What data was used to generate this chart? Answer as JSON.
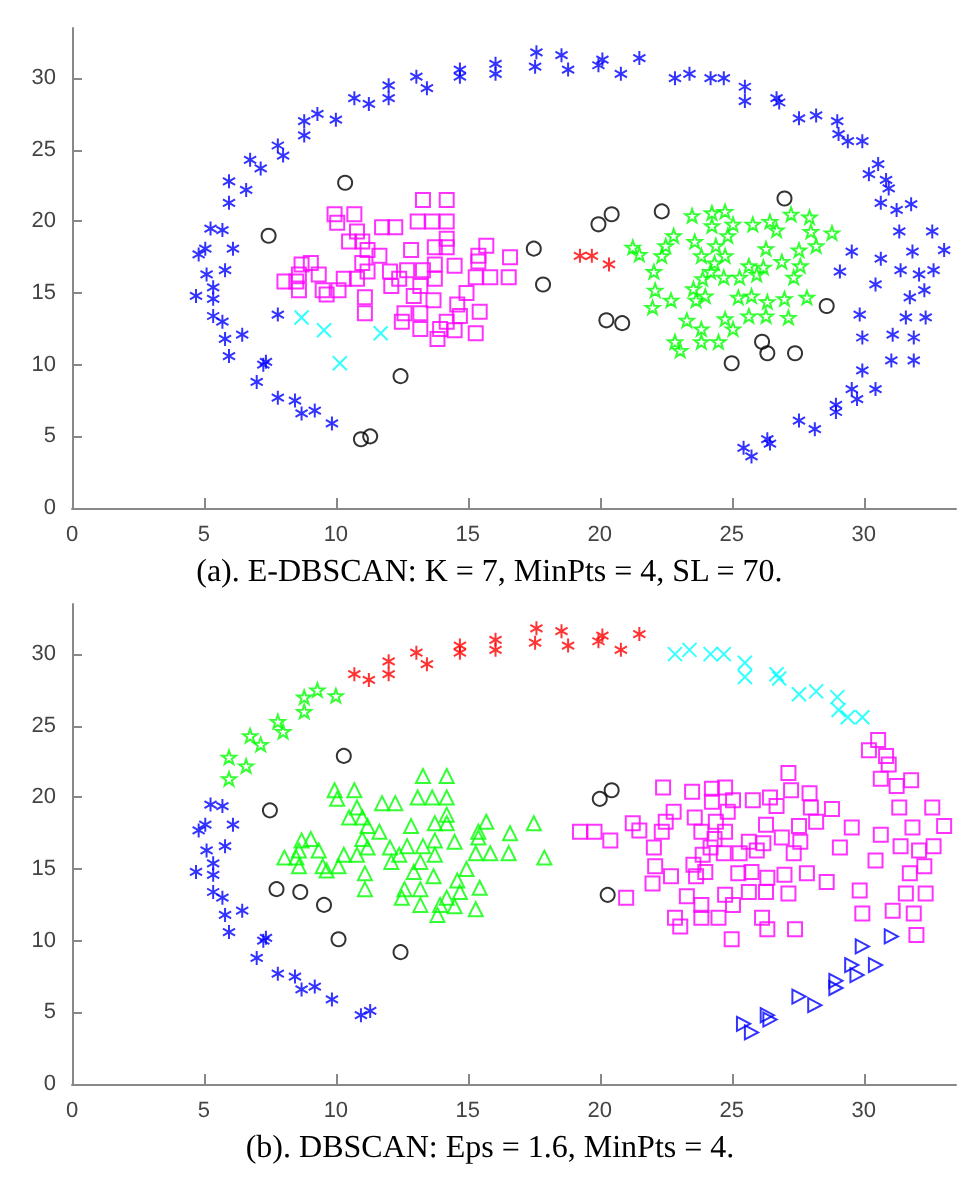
{
  "chart_data": [
    {
      "type": "scatter",
      "annotations": [
        "(a). E-DBSCAN: K = 7, MinPts = 4, SL = 70."
      ],
      "xlim": [
        0,
        33.5
      ],
      "ylim": [
        0,
        33.5
      ],
      "xticks": [
        0,
        5,
        10,
        15,
        20,
        25,
        30
      ],
      "yticks": [
        0,
        5,
        10,
        15,
        20,
        25,
        30
      ],
      "series": [
        {
          "color": "#0000ff",
          "marker": "cross",
          "x": [
            4.7,
            4.8,
            5.05,
            5.1,
            5.25,
            5.7,
            5.35,
            5.35,
            5.35,
            5.7,
            5.8,
            5.8,
            5.95,
            6.1,
            5.95,
            5.95,
            6.6,
            6.45,
            6.75,
            7.15,
            7.25,
            7.35,
            7.0,
            7.8,
            8.0,
            7.8,
            7.8,
            8.45,
            8.7,
            8.8,
            8.8,
            9.3,
            9.2,
            10.0,
            9.85,
            10.7,
            11.25,
            12.0,
            12.0,
            13.05,
            13.45,
            14.7,
            14.7,
            16.05,
            16.05,
            17.55,
            17.6,
            18.55,
            18.8,
            19.95,
            20.1,
            20.8,
            21.5,
            22.85,
            23.4,
            24.2,
            24.7,
            25.5,
            25.5,
            26.7,
            26.8,
            27.55,
            28.2,
            29.0,
            29.05,
            29.4,
            29.95,
            30.2,
            30.55,
            30.85,
            30.95,
            30.65,
            31.25,
            31.8,
            31.35,
            32.6,
            31.85,
            33.05,
            30.65,
            29.55,
            29.1,
            31.4,
            32.1,
            32.65,
            30.45,
            31.75,
            32.3,
            29.85,
            31.6,
            32.35,
            29.95,
            31.1,
            31.9,
            29.95,
            31.05,
            31.9,
            29.55,
            30.45,
            29.75,
            28.95,
            28.95,
            27.55,
            28.15,
            26.35,
            26.45,
            25.45,
            25.75
          ],
          "values": [
            14.8,
            17.7,
            18.1,
            16.3,
            19.5,
            19.4,
            15.4,
            14.6,
            13.4,
            13.0,
            16.6,
            11.8,
            10.6,
            18.1,
            21.3,
            22.8,
            22.2,
            12.1,
            24.3,
            23.7,
            10.0,
            10.2,
            8.8,
            25.3,
            24.6,
            13.5,
            7.7,
            7.5,
            6.6,
            26.0,
            27.0,
            27.5,
            6.8,
            27.1,
            5.9,
            28.6,
            28.2,
            28.6,
            29.5,
            30.1,
            29.3,
            30.6,
            30.1,
            31.0,
            30.3,
            30.8,
            31.8,
            31.6,
            30.6,
            30.9,
            31.3,
            30.3,
            31.4,
            30.0,
            30.3,
            30.0,
            30.0,
            29.4,
            28.4,
            28.6,
            28.3,
            27.2,
            27.4,
            27.0,
            26.1,
            25.6,
            25.6,
            23.3,
            24.0,
            22.9,
            22.3,
            21.3,
            20.8,
            21.2,
            19.3,
            19.3,
            17.9,
            18.0,
            17.4,
            17.9,
            16.5,
            16.6,
            16.3,
            16.6,
            15.6,
            14.7,
            15.2,
            13.5,
            13.3,
            13.3,
            11.9,
            12.1,
            11.9,
            9.6,
            10.3,
            10.3,
            8.3,
            8.3,
            7.6,
            7.2,
            6.7,
            6.1,
            5.5,
            4.8,
            4.5,
            4.2,
            3.6
          ]
        },
        {
          "color": "#ff00ff",
          "marker": "square",
          "x": [
            13.3,
            14.2,
            9.95,
            10.7,
            10.05,
            13.1,
            13.65,
            14.2,
            11.75,
            12.25,
            10.8,
            14.2,
            11.0,
            10.5,
            15.7,
            12.85,
            13.75,
            14.2,
            11.2,
            15.4,
            11.65,
            16.6,
            8.7,
            9.05,
            11.0,
            13.75,
            14.5,
            15.4,
            9.35,
            8.6,
            11.2,
            12.05,
            12.7,
            13.3,
            8.05,
            8.5,
            10.3,
            10.8,
            12.4,
            13.75,
            15.3,
            15.85,
            16.55,
            8.6,
            9.5,
            10.1,
            12.1,
            13.2,
            14.95,
            9.65,
            11.1,
            12.95,
            13.7,
            14.6,
            11.1,
            12.6,
            13.2,
            15.45,
            12.5,
            14.2,
            14.7,
            13.2,
            13.95,
            14.5,
            15.3,
            13.85
          ],
          "values": [
            21.5,
            21.5,
            20.5,
            20.5,
            19.9,
            20.0,
            20.0,
            20.0,
            19.6,
            19.6,
            19.3,
            18.8,
            18.6,
            18.6,
            18.3,
            18.0,
            18.2,
            18.2,
            18.0,
            17.6,
            17.6,
            17.5,
            17.0,
            17.1,
            17.1,
            17.0,
            16.9,
            17.2,
            16.3,
            16.3,
            16.5,
            16.5,
            16.6,
            16.6,
            15.8,
            15.8,
            16.0,
            16.0,
            16.0,
            16.0,
            16.1,
            16.1,
            16.1,
            15.2,
            15.2,
            15.2,
            15.5,
            15.5,
            15.0,
            14.9,
            14.7,
            14.8,
            14.5,
            14.2,
            13.6,
            13.6,
            13.6,
            13.7,
            13.0,
            13.0,
            13.4,
            12.5,
            12.5,
            12.4,
            12.2,
            11.8
          ]
        },
        {
          "color": "#00ff00",
          "marker": "star",
          "x": [
            23.5,
            24.25,
            24.75,
            25.05,
            24.25,
            25.8,
            26.45,
            27.25,
            27.95,
            26.7,
            28.0,
            28.8,
            22.8,
            23.6,
            24.85,
            22.5,
            24.4,
            26.3,
            27.55,
            28.2,
            21.25,
            21.5,
            22.35,
            23.85,
            24.75,
            24.35,
            25.65,
            26.9,
            27.6,
            22.05,
            24.2,
            26.2,
            24.7,
            25.3,
            25.95,
            27.35,
            23.9,
            23.55,
            22.1,
            24.0,
            25.25,
            25.75,
            27.0,
            27.85,
            22.7,
            23.65,
            22.0,
            26.35,
            23.3,
            24.75,
            25.65,
            26.3,
            27.15,
            23.85,
            25.05,
            22.85,
            23.85,
            24.5,
            23.05
          ],
          "values": [
            20.4,
            20.6,
            20.7,
            19.8,
            19.7,
            19.8,
            20.0,
            20.5,
            20.3,
            19.4,
            19.3,
            19.2,
            19.0,
            18.6,
            19.0,
            18.3,
            18.3,
            18.1,
            18.0,
            18.3,
            18.2,
            17.7,
            17.6,
            17.6,
            17.6,
            17.1,
            16.9,
            17.2,
            16.9,
            16.5,
            16.5,
            16.8,
            16.1,
            16.1,
            16.3,
            16.1,
            16.0,
            15.3,
            15.2,
            14.8,
            14.7,
            14.8,
            14.6,
            14.7,
            14.5,
            14.5,
            14.0,
            14.4,
            13.1,
            13.2,
            13.4,
            13.4,
            13.3,
            12.5,
            12.5,
            11.6,
            11.6,
            11.6,
            11.0
          ]
        },
        {
          "color": "#000000",
          "marker": "circle",
          "x": [
            10.35,
            7.45,
            17.5,
            17.85,
            19.95,
            20.45,
            22.35,
            27.0,
            20.25,
            20.85,
            28.6,
            26.15,
            26.35,
            27.4,
            25.0,
            12.45,
            10.95,
            11.3
          ],
          "values": [
            22.7,
            19.0,
            18.1,
            15.6,
            19.8,
            20.5,
            20.7,
            21.6,
            13.1,
            12.9,
            14.1,
            11.6,
            10.8,
            10.8,
            10.1,
            9.2,
            4.8,
            5.0
          ]
        },
        {
          "color": "#ff0000",
          "marker": "cross",
          "x": [
            19.25,
            19.7,
            20.35
          ],
          "values": [
            17.6,
            17.6,
            17.0
          ]
        },
        {
          "color": "#00ffff",
          "marker": "x",
          "x": [
            8.7,
            9.55,
            11.7,
            10.15
          ],
          "values": [
            13.3,
            12.4,
            12.2,
            10.1
          ]
        }
      ]
    },
    {
      "type": "scatter",
      "annotations": [
        "(b). DBSCAN: Eps = 1.6, MinPts = 4."
      ],
      "xlim": [
        0,
        33.5
      ],
      "ylim": [
        0,
        33.5
      ],
      "xticks": [
        0,
        5,
        10,
        15,
        20,
        25,
        30
      ],
      "yticks": [
        0,
        5,
        10,
        15,
        20,
        25,
        30
      ],
      "series": [
        {
          "color": "#0000ff",
          "marker": "cross",
          "x": [
            4.7,
            4.8,
            5.05,
            5.1,
            5.25,
            5.7,
            5.35,
            5.35,
            5.35,
            5.7,
            5.8,
            5.8,
            5.95,
            6.1,
            6.45,
            7.25,
            7.35,
            7.0,
            7.8,
            8.45,
            8.7,
            9.2,
            9.85,
            10.95,
            11.3
          ],
          "values": [
            14.8,
            17.7,
            18.1,
            16.3,
            19.5,
            19.4,
            15.4,
            14.6,
            13.4,
            13.0,
            16.6,
            11.8,
            10.6,
            18.1,
            12.1,
            10.0,
            10.2,
            8.8,
            7.7,
            7.5,
            6.6,
            6.8,
            5.9,
            4.8,
            5.1
          ]
        },
        {
          "color": "#00ff00",
          "marker": "star",
          "x": [
            5.95,
            5.95,
            6.6,
            6.75,
            7.15,
            7.8,
            8.0,
            8.8,
            8.8,
            9.3,
            10.0
          ],
          "values": [
            21.3,
            22.8,
            22.2,
            24.3,
            23.7,
            25.3,
            24.6,
            26.0,
            27.0,
            27.5,
            27.1
          ]
        },
        {
          "color": "#ff0000",
          "marker": "cross",
          "x": [
            10.7,
            11.25,
            12.0,
            12.0,
            13.05,
            13.45,
            14.7,
            14.7,
            16.05,
            16.05,
            17.55,
            17.6,
            18.55,
            18.8,
            19.95,
            20.1,
            20.8,
            21.5
          ],
          "values": [
            28.6,
            28.2,
            28.6,
            29.5,
            30.1,
            29.3,
            30.6,
            30.1,
            31.0,
            30.3,
            30.8,
            31.8,
            31.6,
            30.6,
            30.9,
            31.3,
            30.3,
            31.4
          ]
        },
        {
          "color": "#00ffff",
          "marker": "x",
          "x": [
            22.85,
            23.4,
            24.2,
            24.7,
            25.5,
            25.5,
            26.7,
            26.8,
            27.55,
            28.2,
            29.0,
            29.05,
            29.4,
            29.95
          ],
          "values": [
            30.0,
            30.3,
            30.0,
            30.0,
            29.4,
            28.4,
            28.6,
            28.3,
            27.2,
            27.4,
            27.0,
            26.1,
            25.6,
            25.6
          ]
        },
        {
          "color": "#0000ff",
          "marker": "triangle-right",
          "x": [
            29.95,
            31.05,
            29.55,
            30.45,
            29.75,
            28.95,
            28.95,
            27.55,
            28.15,
            26.35,
            26.45,
            25.45,
            25.75
          ],
          "values": [
            9.6,
            10.3,
            8.3,
            8.3,
            7.6,
            7.2,
            6.7,
            6.1,
            5.5,
            4.8,
            4.5,
            4.2,
            3.6
          ]
        },
        {
          "color": "#00ff00",
          "marker": "triangle",
          "x": [
            13.3,
            14.2,
            9.95,
            10.7,
            10.05,
            13.1,
            13.65,
            14.2,
            11.75,
            12.25,
            10.8,
            14.2,
            11.0,
            10.5,
            15.7,
            12.85,
            13.75,
            14.2,
            11.2,
            15.4,
            11.65,
            16.6,
            8.7,
            9.05,
            11.0,
            13.75,
            14.5,
            15.4,
            9.35,
            8.6,
            11.2,
            12.05,
            12.7,
            13.3,
            8.05,
            8.5,
            10.3,
            10.8,
            12.4,
            13.75,
            15.3,
            15.85,
            16.55,
            8.6,
            9.5,
            10.1,
            12.1,
            13.2,
            14.95,
            9.65,
            11.1,
            12.95,
            13.7,
            14.6,
            11.1,
            12.6,
            13.2,
            15.45,
            12.5,
            14.2,
            14.7,
            13.2,
            13.95,
            14.5,
            15.3,
            13.85,
            17.5,
            17.9
          ],
          "values": [
            21.5,
            21.5,
            20.5,
            20.5,
            19.9,
            20.0,
            20.0,
            20.0,
            19.6,
            19.6,
            19.3,
            18.8,
            18.6,
            18.6,
            18.3,
            18.0,
            18.2,
            18.2,
            18.0,
            17.6,
            17.6,
            17.5,
            17.0,
            17.1,
            17.1,
            17.0,
            16.9,
            17.2,
            16.3,
            16.3,
            16.5,
            16.5,
            16.6,
            16.6,
            15.8,
            15.8,
            16.0,
            16.0,
            16.0,
            16.0,
            16.1,
            16.1,
            16.1,
            15.2,
            15.2,
            15.2,
            15.5,
            15.5,
            15.0,
            14.9,
            14.7,
            14.8,
            14.5,
            14.2,
            13.6,
            13.6,
            13.6,
            13.7,
            13.0,
            13.0,
            13.4,
            12.5,
            12.5,
            12.4,
            12.2,
            11.8,
            18.2,
            15.8
          ]
        },
        {
          "color": "#ff00ff",
          "marker": "square",
          "x": [
            23.5,
            24.25,
            24.75,
            25.05,
            24.25,
            25.8,
            26.45,
            27.25,
            27.95,
            26.7,
            28.0,
            28.8,
            22.8,
            23.6,
            24.85,
            22.5,
            24.4,
            26.3,
            27.55,
            28.2,
            21.25,
            21.5,
            22.35,
            23.85,
            24.75,
            24.35,
            25.65,
            26.9,
            27.6,
            22.05,
            24.2,
            26.2,
            24.7,
            25.3,
            25.95,
            27.35,
            23.9,
            23.55,
            22.1,
            24.0,
            25.25,
            25.75,
            27.0,
            27.85,
            22.7,
            23.65,
            22.0,
            26.35,
            23.3,
            24.75,
            25.65,
            26.3,
            27.15,
            23.85,
            25.05,
            22.85,
            23.85,
            24.5,
            23.05,
            19.25,
            19.8,
            20.4,
            21.0,
            22.4,
            27.15,
            28.6,
            26.15,
            26.35,
            27.4,
            25.0,
            30.2,
            30.55,
            30.85,
            30.95,
            30.65,
            31.25,
            31.8,
            31.35,
            32.6,
            31.85,
            33.05,
            30.65,
            29.55,
            29.1,
            31.4,
            32.1,
            32.65,
            30.45,
            31.75,
            32.3,
            29.85,
            31.6,
            32.35,
            29.95,
            31.1,
            31.9,
            32.0
          ],
          "values": [
            20.4,
            20.6,
            20.7,
            19.8,
            19.7,
            19.8,
            20.0,
            20.5,
            20.3,
            19.4,
            19.3,
            19.2,
            19.0,
            18.6,
            19.0,
            18.3,
            18.3,
            18.1,
            18.0,
            18.3,
            18.2,
            17.7,
            17.6,
            17.6,
            17.6,
            17.1,
            16.9,
            17.2,
            16.9,
            16.5,
            16.5,
            16.8,
            16.1,
            16.1,
            16.3,
            16.1,
            16.0,
            15.3,
            15.2,
            14.8,
            14.7,
            14.8,
            14.6,
            14.7,
            14.5,
            14.5,
            14.0,
            14.4,
            13.1,
            13.2,
            13.4,
            13.4,
            13.3,
            12.5,
            12.5,
            11.6,
            11.6,
            11.6,
            11.0,
            17.6,
            17.6,
            17.0,
            13.0,
            20.7,
            21.7,
            14.1,
            11.6,
            10.8,
            10.8,
            10.1,
            23.3,
            24.0,
            22.9,
            22.3,
            21.3,
            20.8,
            21.2,
            19.3,
            19.3,
            17.9,
            18.0,
            17.4,
            17.9,
            16.5,
            16.6,
            16.3,
            16.6,
            15.6,
            14.7,
            15.2,
            13.5,
            13.3,
            13.3,
            11.9,
            12.1,
            11.9,
            10.4
          ]
        },
        {
          "color": "#000000",
          "marker": "circle",
          "x": [
            10.3,
            7.5,
            20.0,
            20.45,
            7.75,
            8.65,
            9.55,
            10.1,
            12.45,
            20.3
          ],
          "values": [
            22.9,
            19.1,
            19.9,
            20.5,
            13.6,
            13.4,
            12.5,
            10.1,
            9.2,
            13.2
          ]
        }
      ]
    }
  ]
}
